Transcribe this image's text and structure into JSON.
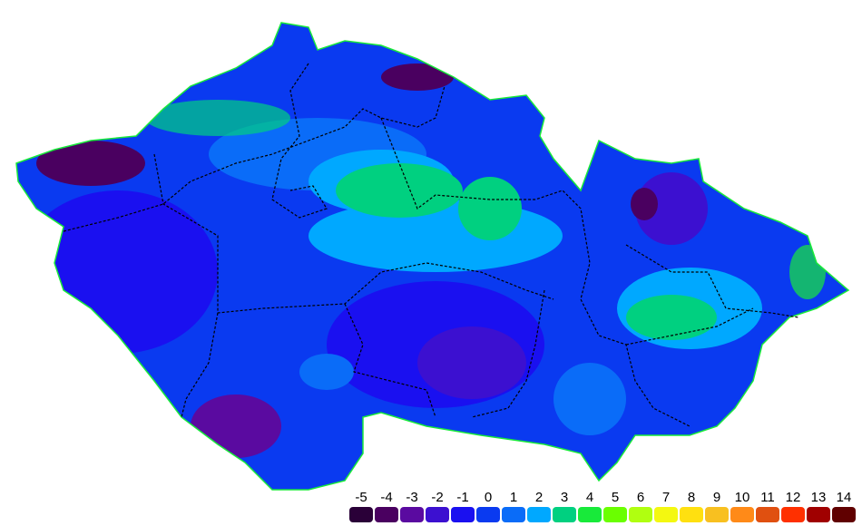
{
  "legend": {
    "items": [
      {
        "label": "-5",
        "color": "#2a0038"
      },
      {
        "label": "-4",
        "color": "#4a0060"
      },
      {
        "label": "-3",
        "color": "#5a0aa0"
      },
      {
        "label": "-2",
        "color": "#3c10d0"
      },
      {
        "label": "-1",
        "color": "#1a10f0"
      },
      {
        "label": "0",
        "color": "#0a3af0"
      },
      {
        "label": "1",
        "color": "#0a6cf8"
      },
      {
        "label": "2",
        "color": "#00a8ff"
      },
      {
        "label": "3",
        "color": "#00d080"
      },
      {
        "label": "4",
        "color": "#18ea3a"
      },
      {
        "label": "5",
        "color": "#6aff00"
      },
      {
        "label": "6",
        "color": "#b0ff10"
      },
      {
        "label": "7",
        "color": "#f4f810"
      },
      {
        "label": "8",
        "color": "#ffe010"
      },
      {
        "label": "9",
        "color": "#f8c020"
      },
      {
        "label": "10",
        "color": "#ff8a18"
      },
      {
        "label": "11",
        "color": "#e05010"
      },
      {
        "label": "12",
        "color": "#ff3000"
      },
      {
        "label": "13",
        "color": "#a00000"
      },
      {
        "label": "14",
        "color": "#600000"
      }
    ]
  }
}
